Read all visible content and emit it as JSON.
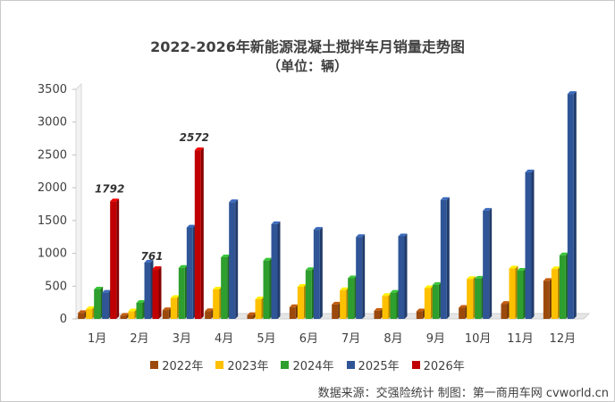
{
  "chart_data": {
    "type": "bar",
    "title": "2022-2026年新能源混凝土搅拌车月销量走势图",
    "subtitle": "（单位：辆）",
    "categories": [
      "1月",
      "2月",
      "3月",
      "4月",
      "5月",
      "6月",
      "7月",
      "8月",
      "9月",
      "10月",
      "11月",
      "12月"
    ],
    "ylim": [
      0,
      3500
    ],
    "yticks": [
      0,
      500,
      1000,
      1500,
      2000,
      2500,
      3000,
      3500
    ],
    "grid": false,
    "legend_position": "bottom",
    "series": [
      {
        "name": "2022年",
        "color": "#9c4a0c",
        "values": [
          90,
          50,
          135,
          120,
          60,
          180,
          220,
          125,
          115,
          170,
          230,
          580
        ]
      },
      {
        "name": "2023年",
        "color": "#ffc000",
        "values": [
          150,
          115,
          320,
          450,
          300,
          490,
          440,
          350,
          470,
          610,
          770,
          760
        ]
      },
      {
        "name": "2024年",
        "color": "#2e9e2e",
        "values": [
          450,
          245,
          780,
          940,
          890,
          745,
          620,
          400,
          520,
          615,
          735,
          970
        ]
      },
      {
        "name": "2025年",
        "color": "#2f5597",
        "values": [
          400,
          860,
          1395,
          1780,
          1445,
          1360,
          1250,
          1260,
          1815,
          1650,
          2235,
          3430
        ]
      },
      {
        "name": "2026年",
        "color": "#c00000",
        "values": [
          1792,
          761,
          2572,
          null,
          null,
          null,
          null,
          null,
          null,
          null,
          null,
          null
        ]
      }
    ],
    "data_labels": [
      {
        "series": "2026年",
        "category": "1月",
        "text": "1792"
      },
      {
        "series": "2026年",
        "category": "2月",
        "text": "761"
      },
      {
        "series": "2026年",
        "category": "3月",
        "text": "2572"
      }
    ]
  },
  "source_text": "数据来源：交强险统计 制图：第一商用车网 cvworld.cn"
}
